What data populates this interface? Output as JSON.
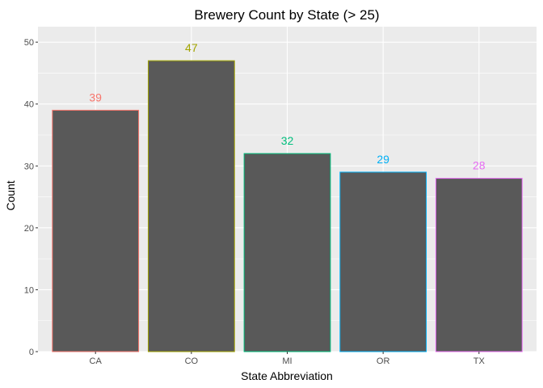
{
  "chart_data": {
    "type": "bar",
    "title": "Brewery Count by State (> 25)",
    "xlabel": "State Abbreviation",
    "ylabel": "Count",
    "categories": [
      "CA",
      "CO",
      "MI",
      "OR",
      "TX"
    ],
    "values": [
      39,
      47,
      32,
      29,
      28
    ],
    "data_labels": [
      "39",
      "47",
      "32",
      "29",
      "28"
    ],
    "ylim": [
      0,
      52.5
    ],
    "yticks": [
      0,
      10,
      20,
      30,
      40,
      50
    ],
    "ytick_labels": [
      "0",
      "10",
      "20",
      "30",
      "40",
      "50"
    ],
    "grid": true,
    "legend": "none",
    "colors": {
      "panel_background": "#EBEBEB",
      "grid": "#FFFFFF",
      "bar_fill": "#595959",
      "series": [
        "#F8766D",
        "#A3A500",
        "#00BF7D",
        "#00B0F6",
        "#E76BF3"
      ]
    }
  }
}
